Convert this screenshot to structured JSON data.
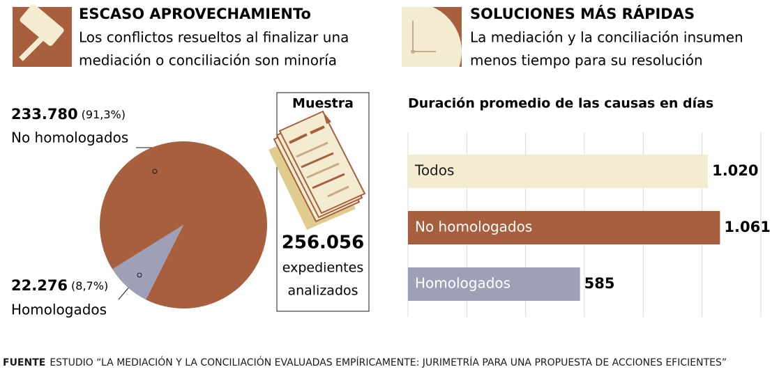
{
  "chart_data": [
    {
      "type": "pie",
      "title": "ESCASO APROVECHAMIENTo",
      "subtitle_lines": [
        "Los conflictos resueltos al finalizar una",
        "mediación o conciliación son minoría"
      ],
      "categories": [
        "No homologados",
        "Homologados"
      ],
      "values": [
        233780,
        22276
      ],
      "value_labels": [
        "233.780",
        "22.276"
      ],
      "percentages": [
        91.3,
        8.7
      ],
      "percentage_labels": [
        "(91,3%)",
        "(8,7%)"
      ],
      "colors": [
        "#a85f3e",
        "#9ea0b8"
      ],
      "sample": {
        "title": "Muestra",
        "count": "256.056",
        "caption_lines": [
          "expedientes",
          "analizados"
        ]
      }
    },
    {
      "type": "barh",
      "title": "SOLUCIONES MÁS RÁPIDAS",
      "subtitle_lines": [
        "La mediación y la conciliación insumen",
        "menos tiempo para su resolución"
      ],
      "chart_title": "Duración promedio de las causas en días",
      "categories": [
        "Todos",
        "No homologados",
        "Homologados"
      ],
      "values": [
        1020,
        1061,
        585
      ],
      "value_labels": [
        "1.020",
        "1.061",
        "585"
      ],
      "colors": [
        "#f3ecd0",
        "#a85f3e",
        "#9ea0b8"
      ],
      "label_colors": [
        "#1a1a1a",
        "#ffffff",
        "#ffffff"
      ],
      "xlim": [
        0,
        1200
      ],
      "xticks": [
        0,
        200,
        400,
        600,
        800,
        1000,
        1200
      ],
      "grid": true
    }
  ],
  "source": {
    "label": "FUENTE",
    "text": "ESTUDIO “LA MEDIACIÓN Y LA CONCILIACIÓN EVALUADAS EMPÍRICAMENTE: JURIMETRÍA PARA UNA PROPUESTA DE ACCIONES EFICIENTES”"
  }
}
